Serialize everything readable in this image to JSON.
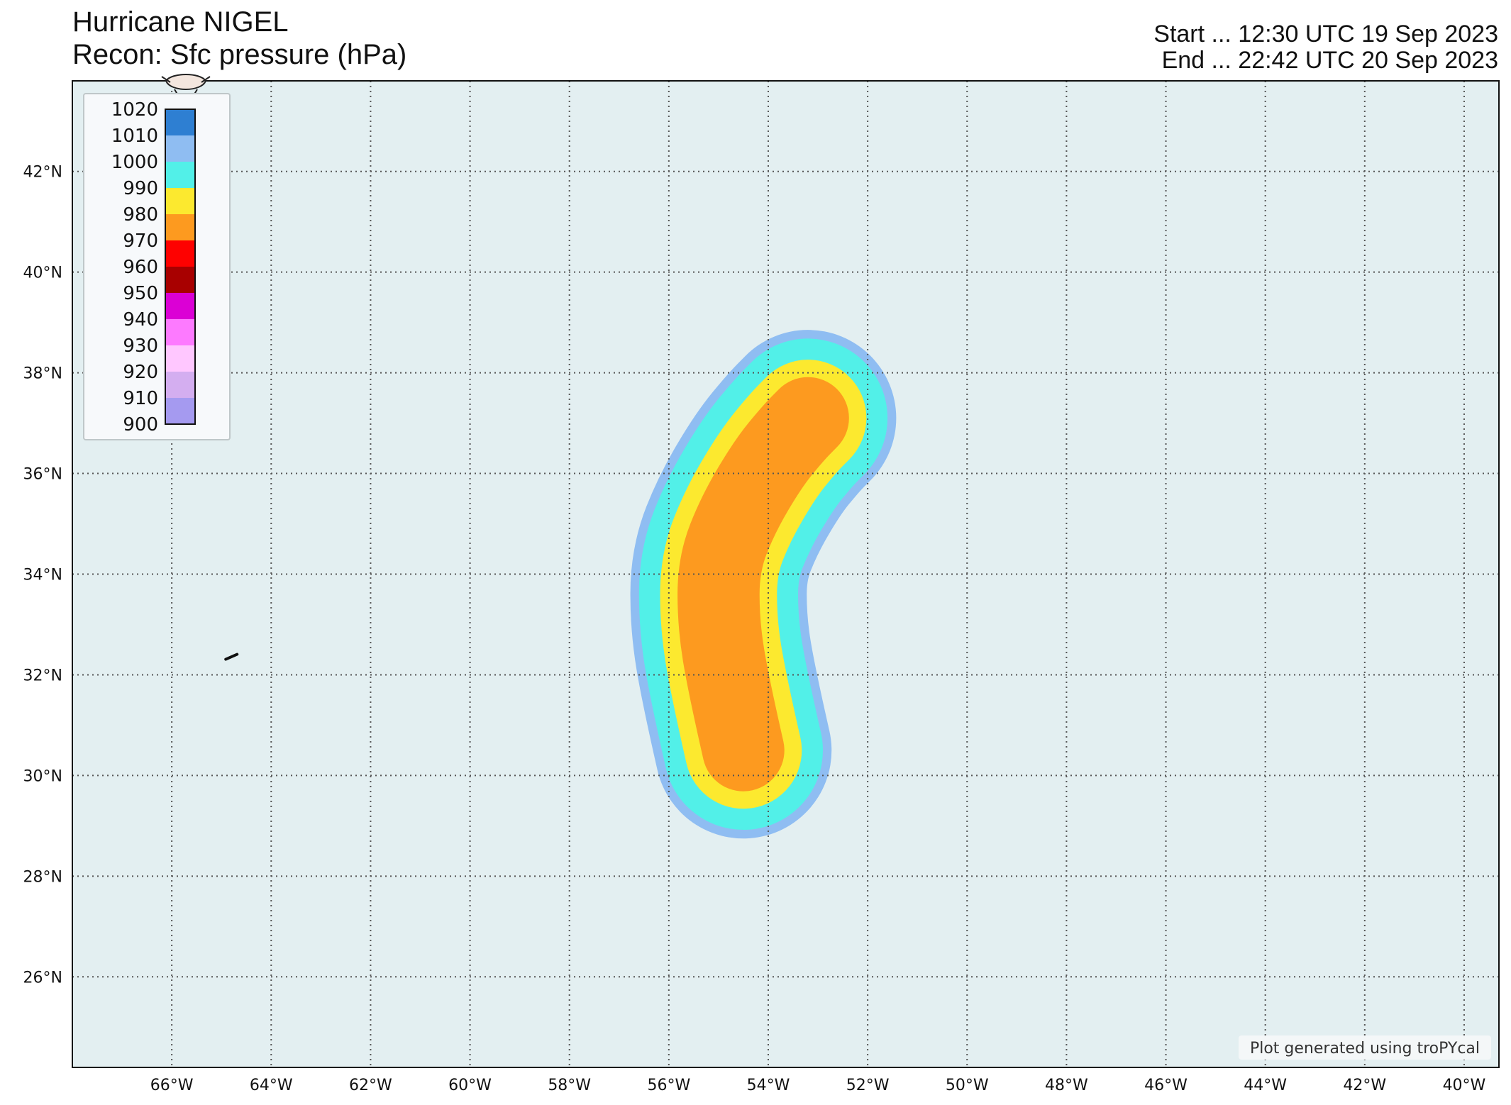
{
  "header": {
    "title_line1": "Hurricane NIGEL",
    "title_line2": "Recon: Sfc pressure (hPa)",
    "start_text": "Start ... 12:30 UTC 19 Sep 2023",
    "end_text": "End ... 22:42 UTC 20 Sep 2023"
  },
  "credit": "Plot generated using troPYcal",
  "colors": {
    "ocean": "#e3eff1",
    "grid": "#555555",
    "frame": "#111111",
    "island": "#111111"
  },
  "map": {
    "lon_range": [
      -68,
      -39.3
    ],
    "lat_range": [
      24.2,
      43.8
    ],
    "lon_ticks": [
      {
        "value": -66,
        "label": "66°W"
      },
      {
        "value": -64,
        "label": "64°W"
      },
      {
        "value": -62,
        "label": "62°W"
      },
      {
        "value": -60,
        "label": "60°W"
      },
      {
        "value": -58,
        "label": "58°W"
      },
      {
        "value": -56,
        "label": "56°W"
      },
      {
        "value": -54,
        "label": "54°W"
      },
      {
        "value": -52,
        "label": "52°W"
      },
      {
        "value": -50,
        "label": "50°W"
      },
      {
        "value": -48,
        "label": "48°W"
      },
      {
        "value": -46,
        "label": "46°W"
      },
      {
        "value": -44,
        "label": "44°W"
      },
      {
        "value": -42,
        "label": "42°W"
      },
      {
        "value": -40,
        "label": "40°W"
      }
    ],
    "lat_ticks": [
      {
        "value": 26,
        "label": "26°N"
      },
      {
        "value": 28,
        "label": "28°N"
      },
      {
        "value": 30,
        "label": "30°N"
      },
      {
        "value": 32,
        "label": "32°N"
      },
      {
        "value": 34,
        "label": "34°N"
      },
      {
        "value": 36,
        "label": "36°N"
      },
      {
        "value": 38,
        "label": "38°N"
      },
      {
        "value": 40,
        "label": "40°N"
      },
      {
        "value": 42,
        "label": "42°N"
      }
    ],
    "track": [
      [
        -54.5,
        30.5
      ],
      [
        -54.8,
        31.8
      ],
      [
        -55.0,
        33.0
      ],
      [
        -55.0,
        34.2
      ],
      [
        -54.6,
        35.2
      ],
      [
        -54.0,
        36.2
      ],
      [
        -53.5,
        36.8
      ],
      [
        -53.2,
        37.1
      ]
    ],
    "pressure_bands": [
      {
        "level": 1000,
        "color": "#8fbdf2",
        "width_deg": 3.55
      },
      {
        "level": 990,
        "color": "#52f0e8",
        "width_deg": 3.2
      },
      {
        "level": 980,
        "color": "#fce92f",
        "width_deg": 2.35
      },
      {
        "level": 970,
        "color": "#fd9a1f",
        "width_deg": 1.65
      }
    ],
    "island": {
      "name": "Bermuda",
      "lon": -64.8,
      "lat": 32.35
    }
  },
  "legend": {
    "levels": [
      {
        "label": "1020",
        "color": "#2e7fd2"
      },
      {
        "label": "1010",
        "color": "#8fbdf2"
      },
      {
        "label": "1000",
        "color": "#52f0e8"
      },
      {
        "label": "990",
        "color": "#fce92f"
      },
      {
        "label": "980",
        "color": "#fd9a1f"
      },
      {
        "label": "970",
        "color": "#fe0100"
      },
      {
        "label": "960",
        "color": "#a80000"
      },
      {
        "label": "950",
        "color": "#db00d5"
      },
      {
        "label": "940",
        "color": "#fd7aff"
      },
      {
        "label": "930",
        "color": "#ffc7ff"
      },
      {
        "label": "920",
        "color": "#d4aef0"
      },
      {
        "label": "910",
        "color": "#a59af0"
      }
    ],
    "bottom_label": "900"
  }
}
